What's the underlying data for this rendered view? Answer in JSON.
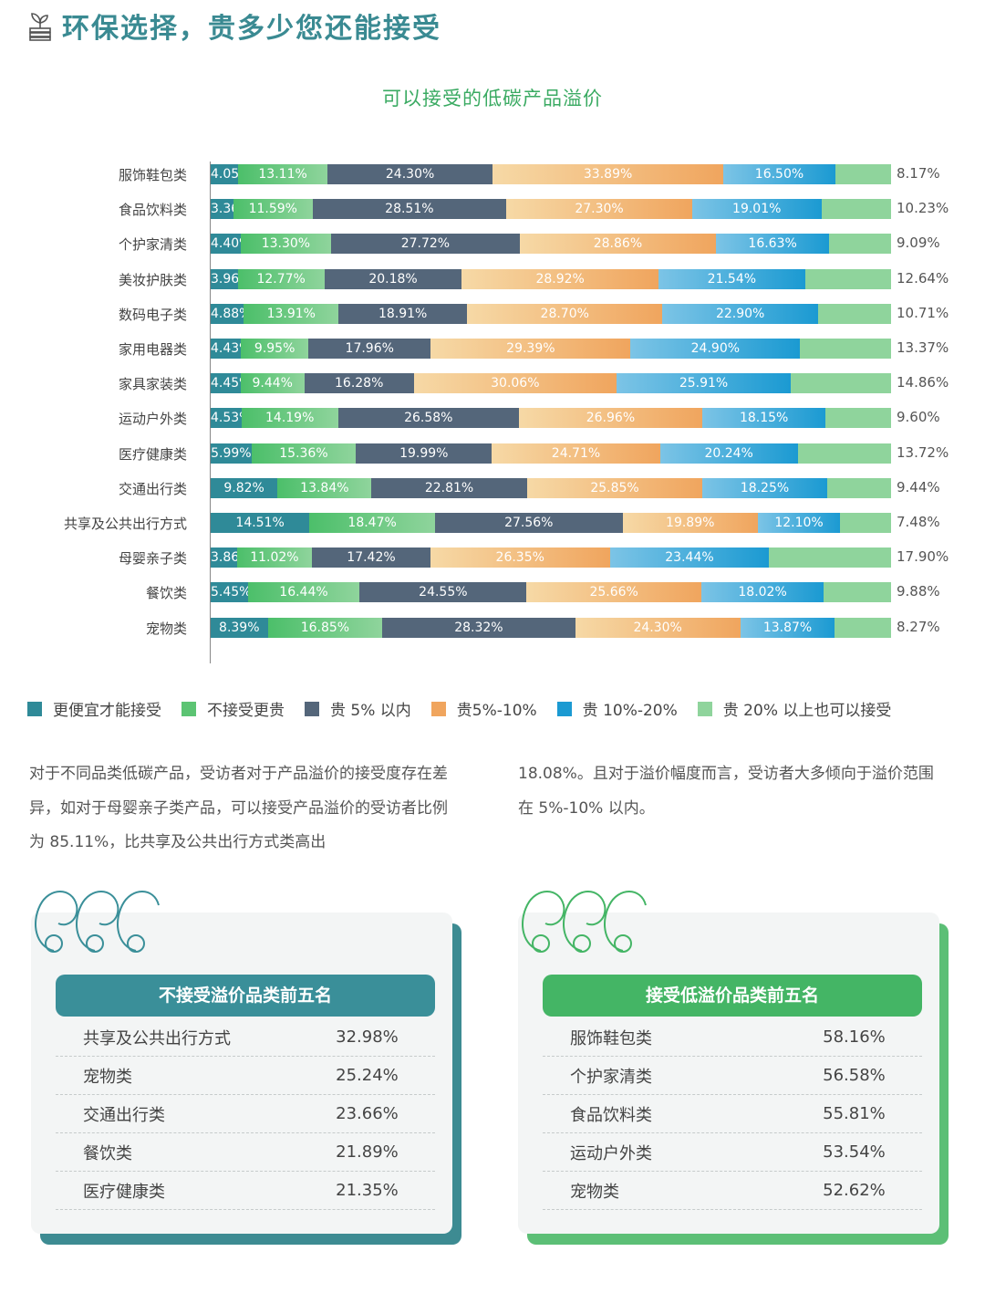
{
  "header": {
    "title": "环保选择，贵多少您还能接受",
    "icon": "plant-book-icon"
  },
  "chart_data": {
    "type": "bar",
    "orientation": "horizontal",
    "stacked": true,
    "title": "可以接受的低碳产品溢价",
    "categories": [
      "服饰鞋包类",
      "食品饮料类",
      "个护家清类",
      "美妆护肤类",
      "数码电子类",
      "家用电器类",
      "家具家装类",
      "运动户外类",
      "医疗健康类",
      "交通出行类",
      "共享及公共出行方式",
      "母婴亲子类",
      "餐饮类",
      "宠物类"
    ],
    "series": [
      {
        "name": "更便宜才能接受",
        "color": "#2f8a98",
        "values": [
          4.05,
          3.36,
          4.4,
          3.96,
          4.88,
          4.43,
          4.45,
          4.53,
          5.99,
          9.82,
          14.51,
          3.86,
          5.45,
          8.39
        ]
      },
      {
        "name": "不接受更贵",
        "color": "#5cc473",
        "values": [
          13.11,
          11.59,
          13.3,
          12.77,
          13.91,
          9.95,
          9.44,
          14.19,
          15.36,
          13.84,
          18.47,
          11.02,
          16.44,
          16.85
        ]
      },
      {
        "name": "贵 5% 以内",
        "color": "#54667a",
        "values": [
          24.3,
          28.51,
          27.72,
          20.18,
          18.91,
          17.96,
          16.28,
          26.58,
          19.99,
          22.81,
          27.56,
          17.42,
          24.55,
          28.32
        ]
      },
      {
        "name": "贵5%-10%",
        "color": "#f0a55e",
        "values": [
          33.89,
          27.3,
          28.86,
          28.92,
          28.7,
          29.39,
          30.06,
          26.96,
          24.71,
          25.85,
          19.89,
          26.35,
          25.66,
          24.3
        ]
      },
      {
        "name": "贵 10%-20%",
        "color": "#1b9ad2",
        "values": [
          16.5,
          19.01,
          16.63,
          21.54,
          22.9,
          24.9,
          25.91,
          18.15,
          20.24,
          18.25,
          12.1,
          23.44,
          18.02,
          13.87
        ]
      },
      {
        "name": "贵 20% 以上也可以接受",
        "color": "#8fd49c",
        "values": [
          8.17,
          10.23,
          9.09,
          12.64,
          10.71,
          13.37,
          14.86,
          9.6,
          13.72,
          9.44,
          7.48,
          17.9,
          9.88,
          8.27
        ]
      }
    ],
    "value_suffix": "%",
    "legend_position": "bottom"
  },
  "paragraphs": {
    "left": "对于不同品类低碳产品，受访者对于产品溢价的接受度存在差异，如对于母婴亲子类产品，可以接受产品溢价的受访者比例为 85.11%，比共享及公共出行方式类高出",
    "right": "18.08%。且对于溢价幅度而言，受访者大多倾向于溢价范围在 5%-10% 以内。"
  },
  "card_left": {
    "title": "不接受溢价品类前五名",
    "accent": "#3a8f99",
    "rows": [
      {
        "name": "共享及公共出行方式",
        "value": "32.98%"
      },
      {
        "name": "宠物类",
        "value": "25.24%"
      },
      {
        "name": "交通出行类",
        "value": "23.66%"
      },
      {
        "name": "餐饮类",
        "value": "21.89%"
      },
      {
        "name": "医疗健康类",
        "value": "21.35%"
      }
    ]
  },
  "card_right": {
    "title": "接受低溢价品类前五名",
    "accent": "#44b565",
    "rows": [
      {
        "name": "服饰鞋包类",
        "value": "58.16%"
      },
      {
        "name": "个护家清类",
        "value": "56.58%"
      },
      {
        "name": "食品饮料类",
        "value": "55.81%"
      },
      {
        "name": "运动户外类",
        "value": "53.54%"
      },
      {
        "name": "宠物类",
        "value": "52.62%"
      }
    ]
  }
}
